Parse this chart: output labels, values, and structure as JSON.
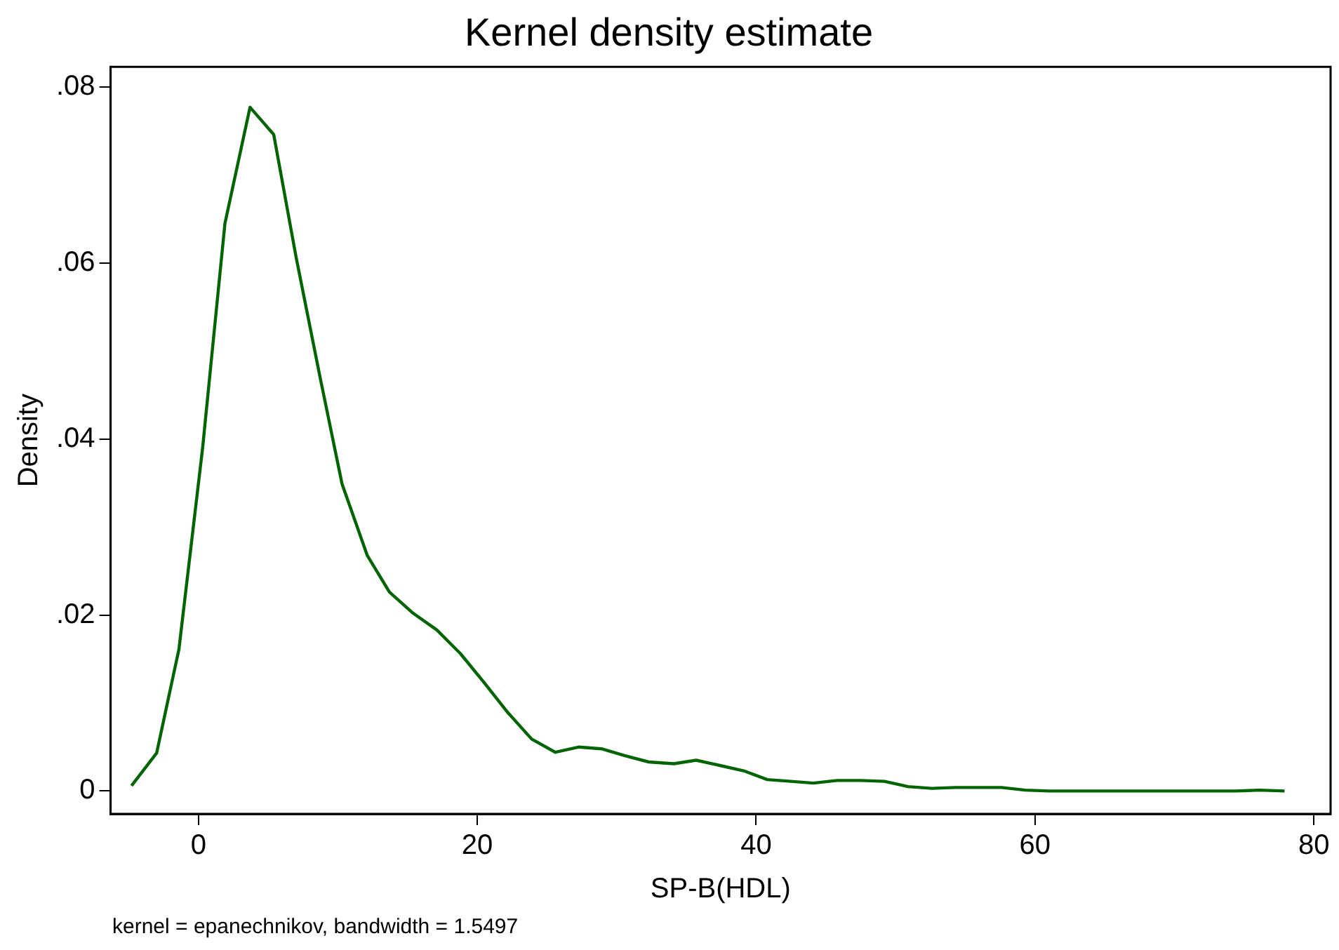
{
  "chart_data": {
    "type": "line",
    "title": "Kernel density estimate",
    "xlabel": "SP-B(HDL)",
    "ylabel": "Density",
    "annotations": [
      "kernel = epanechnikov, bandwidth = 1.5497"
    ],
    "x": [
      -4.8,
      -3.0,
      -1.4,
      0.3,
      1.9,
      3.7,
      5.4,
      7.0,
      8.7,
      10.3,
      12.1,
      13.7,
      15.4,
      17.1,
      18.8,
      20.5,
      22.2,
      23.9,
      25.6,
      27.3,
      28.9,
      30.6,
      32.3,
      34.1,
      35.7,
      37.4,
      39.1,
      40.8,
      42.5,
      44.1,
      45.8,
      47.5,
      49.2,
      50.9,
      52.6,
      54.3,
      55.9,
      57.6,
      59.3,
      61.0,
      62.6,
      64.3,
      66.0,
      67.6,
      69.3,
      71.0,
      72.7,
      74.4,
      76.1,
      77.9
    ],
    "series": [
      {
        "color": "#006400",
        "values": [
          0.0006,
          0.0043,
          0.0161,
          0.039,
          0.0645,
          0.0777,
          0.0746,
          0.0607,
          0.0472,
          0.0349,
          0.0268,
          0.0226,
          0.0202,
          0.0183,
          0.0156,
          0.0123,
          0.0089,
          0.0059,
          0.0044,
          0.005,
          0.0048,
          0.004,
          0.0033,
          0.0031,
          0.0035,
          0.0029,
          0.0023,
          0.0013,
          0.0011,
          0.0009,
          0.0012,
          0.0012,
          0.0011,
          0.0005,
          0.0003,
          0.0004,
          0.0004,
          0.0004,
          0.0001,
          0,
          0,
          0,
          0,
          0,
          0,
          0,
          0,
          0,
          0.0001,
          0
        ]
      }
    ],
    "xlim": [
      -6.3,
      81.2
    ],
    "ylim": [
      -0.0026,
      0.0823
    ],
    "xticks": [
      0,
      20,
      40,
      60,
      80
    ],
    "yticks": [
      {
        "value": 0,
        "label": "0"
      },
      {
        "value": 0.02,
        "label": ".02"
      },
      {
        "value": 0.04,
        "label": ".04"
      },
      {
        "value": 0.06,
        "label": ".06"
      },
      {
        "value": 0.08,
        "label": ".08"
      }
    ],
    "grid": false,
    "legend": false,
    "marker": "none",
    "line_style": "solid"
  }
}
